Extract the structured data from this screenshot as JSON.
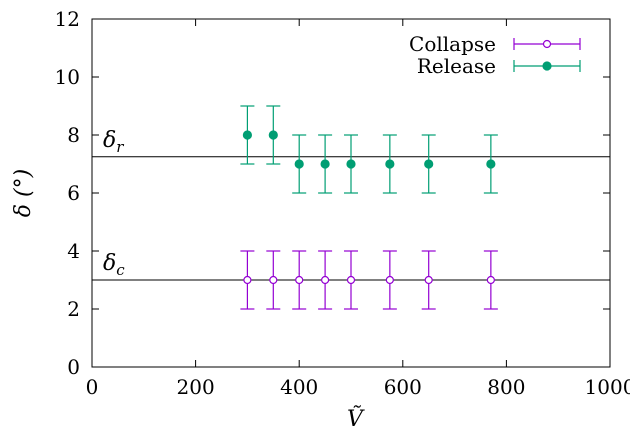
{
  "chart_data": {
    "type": "scatter",
    "xlabel": "Ṽ",
    "ylabel": "δ (°)",
    "xlim": [
      0,
      1000
    ],
    "ylim": [
      0,
      12
    ],
    "x_ticks": [
      0,
      200,
      400,
      600,
      800,
      1000
    ],
    "y_ticks": [
      0,
      2,
      4,
      6,
      8,
      10,
      12
    ],
    "grid": false,
    "legend_position": "top-right",
    "series": [
      {
        "name": "Collapse",
        "color": "#9400d3",
        "marker": "open-circle",
        "x": [
          300,
          350,
          400,
          450,
          500,
          575,
          650,
          770
        ],
        "y": [
          3,
          3,
          3,
          3,
          3,
          3,
          3,
          3
        ],
        "error": [
          1,
          1,
          1,
          1,
          1,
          1,
          1,
          1
        ]
      },
      {
        "name": "Release",
        "color": "#009e73",
        "marker": "filled-circle",
        "x": [
          300,
          350,
          400,
          450,
          500,
          575,
          650,
          770
        ],
        "y": [
          8,
          8,
          7,
          7,
          7,
          7,
          7,
          7
        ],
        "error": [
          1,
          1,
          1,
          1,
          1,
          1,
          1,
          1
        ]
      }
    ],
    "reference_lines": [
      {
        "label": "δ",
        "subscript": "r",
        "y": 7.25
      },
      {
        "label": "δ",
        "subscript": "c",
        "y": 3.0
      }
    ]
  }
}
